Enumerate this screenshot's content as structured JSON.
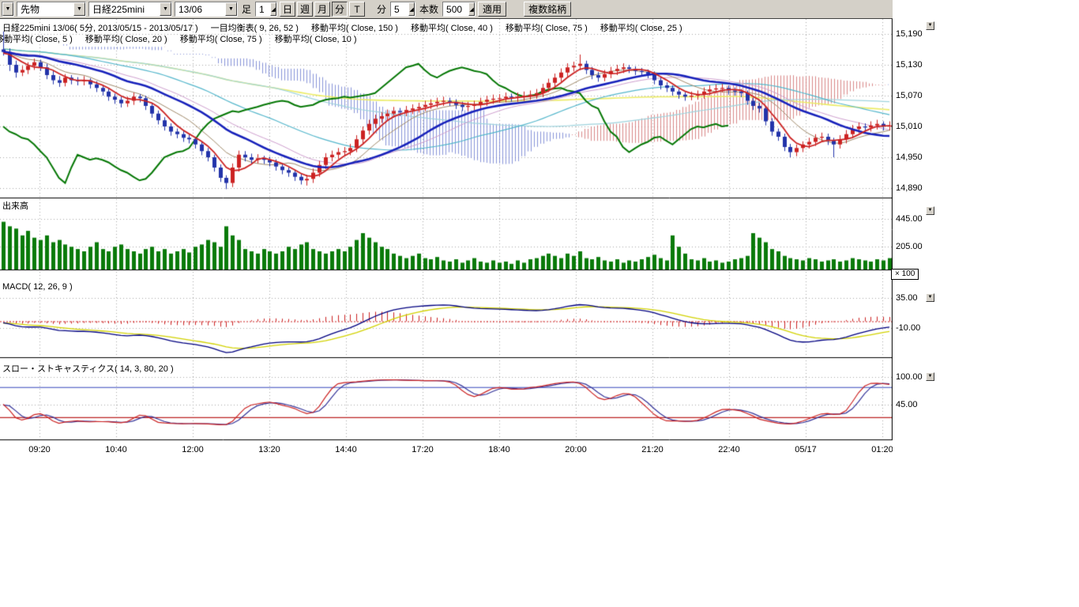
{
  "toolbar": {
    "instrument_type": "先物",
    "symbol": "日経225mini",
    "contract_month": "13/06",
    "bar_label": "足",
    "bar_multiplier": "1",
    "period_buttons": [
      {
        "label": "日",
        "active": false
      },
      {
        "label": "週",
        "active": false
      },
      {
        "label": "月",
        "active": false
      },
      {
        "label": "分",
        "active": true
      },
      {
        "label": "T",
        "active": false
      }
    ],
    "minute_label": "分",
    "minute_value": "5",
    "count_label": "本数",
    "count_value": "500",
    "apply_label": "適用",
    "multi_symbol_label": "複数銘柄"
  },
  "header": {
    "symbol_info": "日経225mini 13/06( 5分, 2013/05/15 - 2013/05/17 )",
    "indicators_row1": [
      "一目均衡表( 9, 26, 52 )",
      "移動平均( Close, 150 )",
      "移動平均( Close, 40 )",
      "移動平均( Close, 75 )",
      "移動平均( Close, 25 )"
    ],
    "indicators_row2": [
      "移動平均( Close, 5 )",
      "移動平均( Close, 20 )",
      "移動平均( Close, 75 )",
      "移動平均( Close, 10 )"
    ]
  },
  "panes": {
    "price": {
      "axis_labels": [
        "15,190",
        "15,130",
        "15,070",
        "15,010",
        "14,950",
        "14,890"
      ]
    },
    "volume": {
      "title": "出来高",
      "axis_labels": [
        "445.00",
        "205.00"
      ],
      "multiplier": "× 100"
    },
    "macd": {
      "title": "MACD( 12, 26, 9 )",
      "axis_labels": [
        "35.00",
        "-10.00"
      ]
    },
    "stoch": {
      "title": "スロー・ストキャスティクス( 14, 3, 80, 20 )",
      "axis_labels": [
        "100.00",
        "45.00"
      ]
    }
  },
  "x_axis": [
    "09:20",
    "10:40",
    "12:00",
    "13:20",
    "14:40",
    "17:20",
    "18:40",
    "20:00",
    "21:20",
    "22:40",
    "05/17",
    "01:20"
  ],
  "colors": {
    "up_candle": "#cc2222",
    "down_candle": "#2233aa",
    "ma_fast": "#cc2222",
    "ma_mid": "#1822bb",
    "chikou": "#067806",
    "ma150": "#ecec66",
    "ma40": "#55b7cc",
    "ma75": "#9fd4de",
    "ma25": "#cf9fcf",
    "ma10": "#a08a6a",
    "cloud_bull": "#cc6060",
    "cloud_bear": "#6070cc",
    "volume": "#0a7a0a",
    "macd_line": "#000080",
    "macd_signal": "#d2d200",
    "macd_hist": "#cc2222",
    "stoch_k": "#cc2222",
    "stoch_d": "#333399",
    "level_high": "#3344bb",
    "level_low": "#bb2222",
    "grid": "#a8a8a8"
  },
  "chart_data": {
    "type": "candlestick-multi-pane",
    "symbol": "日経225mini 13/06",
    "interval": "5分",
    "date_range": "2013/05/15 - 2013/05/17",
    "indicators": {
      "ichimoku": [
        9,
        26,
        52
      ],
      "ma_price": [
        150,
        40,
        75,
        25,
        5,
        20,
        75,
        10
      ],
      "macd": [
        12,
        26,
        9
      ],
      "stochastics": [
        14,
        3,
        80,
        20
      ]
    },
    "price_axis_values": [
      15190,
      15130,
      15070,
      15010,
      14950,
      14890
    ],
    "volume_axis_values": [
      445,
      205
    ],
    "macd_axis_values": [
      35,
      -10
    ],
    "stoch_axis_values": [
      100,
      45
    ],
    "stoch_levels": [
      80,
      20
    ],
    "pre_closes": [
      15160,
      15170,
      15180,
      15175,
      15185,
      15190,
      15180,
      15170,
      15160,
      15150,
      15155,
      15165,
      15170,
      15160,
      15150,
      15140,
      15150,
      15160,
      15170,
      15165,
      15155,
      15145,
      15150,
      15160,
      15155,
      15150,
      15145,
      15150,
      15155,
      15160
    ],
    "candles": [
      [
        15160,
        15195,
        15148,
        15155
      ],
      [
        15155,
        15162,
        15118,
        15130
      ],
      [
        15130,
        15138,
        15105,
        15115
      ],
      [
        15115,
        15128,
        15108,
        15120
      ],
      [
        15120,
        15135,
        15112,
        15128
      ],
      [
        15128,
        15142,
        15120,
        15135
      ],
      [
        15135,
        15140,
        15118,
        15125
      ],
      [
        15125,
        15132,
        15102,
        15110
      ],
      [
        15110,
        15118,
        15092,
        15100
      ],
      [
        15100,
        15108,
        15087,
        15095
      ],
      [
        15095,
        15112,
        15088,
        15105
      ],
      [
        15105,
        15110,
        15092,
        15100
      ],
      [
        15100,
        15106,
        15090,
        15098
      ],
      [
        15098,
        15108,
        15090,
        15100
      ],
      [
        15100,
        15104,
        15084,
        15092
      ],
      [
        15092,
        15098,
        15077,
        15085
      ],
      [
        15085,
        15090,
        15070,
        15078
      ],
      [
        15078,
        15084,
        15060,
        15068
      ],
      [
        15068,
        15074,
        15054,
        15062
      ],
      [
        15062,
        15068,
        15047,
        15055
      ],
      [
        15055,
        15068,
        15048,
        15060
      ],
      [
        15060,
        15076,
        15052,
        15068
      ],
      [
        15068,
        15073,
        15057,
        15065
      ],
      [
        15065,
        15070,
        15042,
        15050
      ],
      [
        15050,
        15056,
        15027,
        15035
      ],
      [
        15035,
        15041,
        15014,
        15022
      ],
      [
        15022,
        15028,
        15002,
        15010
      ],
      [
        15010,
        15016,
        14992,
        15000
      ],
      [
        15000,
        15006,
        14987,
        14995
      ],
      [
        14995,
        15001,
        14980,
        14988
      ],
      [
        14988,
        14994,
        14977,
        14985
      ],
      [
        14985,
        14990,
        14967,
        14975
      ],
      [
        14975,
        14980,
        14954,
        14962
      ],
      [
        14962,
        14968,
        14942,
        14950
      ],
      [
        14950,
        14955,
        14922,
        14930
      ],
      [
        14930,
        14936,
        14902,
        14910
      ],
      [
        14910,
        14915,
        14888,
        14900
      ],
      [
        14900,
        14938,
        14892,
        14930
      ],
      [
        14930,
        14963,
        14922,
        14955
      ],
      [
        14955,
        14962,
        14942,
        14950
      ],
      [
        14950,
        14957,
        14937,
        14945
      ],
      [
        14945,
        14956,
        14938,
        14948
      ],
      [
        14948,
        14953,
        14937,
        14945
      ],
      [
        14945,
        14951,
        14932,
        14940
      ],
      [
        14940,
        14946,
        14924,
        14932
      ],
      [
        14932,
        14938,
        14917,
        14925
      ],
      [
        14925,
        14930,
        14912,
        14920
      ],
      [
        14920,
        14926,
        14904,
        14912
      ],
      [
        14912,
        14918,
        14897,
        14905
      ],
      [
        14905,
        14916,
        14895,
        14908
      ],
      [
        14908,
        14928,
        14900,
        14920
      ],
      [
        14920,
        14943,
        14912,
        14935
      ],
      [
        14935,
        14958,
        14927,
        14950
      ],
      [
        14950,
        14963,
        14942,
        14955
      ],
      [
        14955,
        14968,
        14947,
        14960
      ],
      [
        14960,
        14970,
        14952,
        14962
      ],
      [
        14962,
        14976,
        14954,
        14968
      ],
      [
        14968,
        14993,
        14960,
        14985
      ],
      [
        14985,
        15010,
        14977,
        15002
      ],
      [
        15002,
        15023,
        14994,
        15015
      ],
      [
        15015,
        15033,
        15007,
        15025
      ],
      [
        15025,
        15038,
        15017,
        15030
      ],
      [
        15030,
        15043,
        15022,
        15035
      ],
      [
        15035,
        15048,
        15027,
        15040
      ],
      [
        15040,
        15046,
        15030,
        15038
      ],
      [
        15038,
        15050,
        15030,
        15042
      ],
      [
        15042,
        15053,
        15034,
        15045
      ],
      [
        15045,
        15056,
        15037,
        15048
      ],
      [
        15048,
        15060,
        15040,
        15052
      ],
      [
        15052,
        15063,
        15044,
        15055
      ],
      [
        15055,
        15066,
        15047,
        15058
      ],
      [
        15058,
        15068,
        15050,
        15060
      ],
      [
        15060,
        15066,
        15050,
        15058
      ],
      [
        15058,
        15063,
        15044,
        15052
      ],
      [
        15052,
        15058,
        15040,
        15048
      ],
      [
        15048,
        15058,
        15040,
        15050
      ],
      [
        15050,
        15060,
        15042,
        15052
      ],
      [
        15052,
        15066,
        15044,
        15058
      ],
      [
        15058,
        15070,
        15050,
        15062
      ],
      [
        15062,
        15072,
        15054,
        15064
      ],
      [
        15064,
        15073,
        15056,
        15065
      ],
      [
        15065,
        15076,
        15057,
        15068
      ],
      [
        15068,
        15074,
        15058,
        15066
      ],
      [
        15066,
        15076,
        15058,
        15068
      ],
      [
        15068,
        15078,
        15060,
        15070
      ],
      [
        15070,
        15080,
        15062,
        15072
      ],
      [
        15072,
        15083,
        15064,
        15075
      ],
      [
        15075,
        15093,
        15067,
        15085
      ],
      [
        15085,
        15103,
        15077,
        15095
      ],
      [
        15095,
        15113,
        15087,
        15105
      ],
      [
        15105,
        15123,
        15097,
        15115
      ],
      [
        15115,
        15133,
        15107,
        15125
      ],
      [
        15125,
        15136,
        15117,
        15128
      ],
      [
        15128,
        15150,
        15120,
        15132
      ],
      [
        15132,
        15138,
        15112,
        15120
      ],
      [
        15120,
        15126,
        15102,
        15110
      ],
      [
        15110,
        15116,
        15097,
        15105
      ],
      [
        15105,
        15120,
        15098,
        15112
      ],
      [
        15112,
        15126,
        15104,
        15118
      ],
      [
        15118,
        15130,
        15110,
        15122
      ],
      [
        15122,
        15133,
        15114,
        15125
      ],
      [
        15125,
        15130,
        15114,
        15122
      ],
      [
        15122,
        15127,
        15110,
        15118
      ],
      [
        15118,
        15124,
        15108,
        15116
      ],
      [
        15116,
        15121,
        15104,
        15112
      ],
      [
        15112,
        15117,
        15092,
        15100
      ],
      [
        15100,
        15105,
        15082,
        15090
      ],
      [
        15090,
        15096,
        15077,
        15085
      ],
      [
        15085,
        15090,
        15070,
        15078
      ],
      [
        15078,
        15083,
        15064,
        15072
      ],
      [
        15072,
        15077,
        15060,
        15068
      ],
      [
        15068,
        15078,
        15061,
        15070
      ],
      [
        15070,
        15080,
        15062,
        15072
      ],
      [
        15072,
        15086,
        15064,
        15078
      ],
      [
        15078,
        15090,
        15070,
        15082
      ],
      [
        15082,
        15092,
        15074,
        15084
      ],
      [
        15084,
        15093,
        15076,
        15085
      ],
      [
        15085,
        15090,
        15072,
        15080
      ],
      [
        15080,
        15086,
        15070,
        15078
      ],
      [
        15078,
        15083,
        15067,
        15075
      ],
      [
        15075,
        15080,
        15052,
        15060
      ],
      [
        15060,
        15066,
        15042,
        15050
      ],
      [
        15050,
        15056,
        15037,
        15045
      ],
      [
        15045,
        15050,
        15012,
        15020
      ],
      [
        15020,
        15026,
        14992,
        15000
      ],
      [
        15000,
        15006,
        14982,
        14990
      ],
      [
        14990,
        14996,
        14962,
        14970
      ],
      [
        14970,
        14976,
        14950,
        14960
      ],
      [
        14960,
        14975,
        14952,
        14968
      ],
      [
        14968,
        14981,
        14960,
        14975
      ],
      [
        14975,
        14988,
        14967,
        14980
      ],
      [
        14980,
        14995,
        14972,
        14988
      ],
      [
        14988,
        14998,
        14980,
        14990
      ],
      [
        14990,
        14996,
        14974,
        14982
      ],
      [
        14982,
        14988,
        14950,
        14975
      ],
      [
        14975,
        14993,
        14967,
        14985
      ],
      [
        14985,
        15003,
        14977,
        14995
      ],
      [
        14995,
        15013,
        14987,
        15005
      ],
      [
        15005,
        15018,
        14997,
        15010
      ],
      [
        15010,
        15016,
        15000,
        15008
      ],
      [
        15008,
        15020,
        15000,
        15012
      ],
      [
        15012,
        15023,
        15004,
        15015
      ],
      [
        15015,
        15020,
        15002,
        15010
      ],
      [
        15010,
        15020,
        15002,
        15012
      ]
    ],
    "volumes": [
      420,
      380,
      360,
      300,
      340,
      280,
      260,
      300,
      240,
      260,
      220,
      200,
      180,
      160,
      200,
      240,
      180,
      160,
      200,
      220,
      180,
      160,
      140,
      180,
      200,
      160,
      180,
      140,
      160,
      180,
      150,
      200,
      220,
      260,
      240,
      200,
      380,
      300,
      260,
      180,
      160,
      140,
      180,
      160,
      140,
      160,
      200,
      180,
      220,
      240,
      180,
      160,
      140,
      160,
      180,
      160,
      200,
      260,
      320,
      280,
      240,
      200,
      180,
      140,
      120,
      100,
      120,
      140,
      100,
      90,
      110,
      80,
      70,
      90,
      60,
      80,
      100,
      70,
      60,
      80,
      60,
      70,
      50,
      80,
      60,
      90,
      100,
      120,
      140,
      120,
      100,
      140,
      120,
      160,
      100,
      90,
      110,
      80,
      70,
      90,
      60,
      80,
      70,
      90,
      110,
      130,
      100,
      80,
      300,
      200,
      140,
      90,
      80,
      100,
      70,
      80,
      60,
      70,
      90,
      100,
      120,
      320,
      280,
      240,
      180,
      160,
      120,
      100,
      90,
      80,
      100,
      90,
      70,
      80,
      90,
      70,
      80,
      100,
      90,
      80,
      70,
      90,
      80,
      100
    ]
  }
}
